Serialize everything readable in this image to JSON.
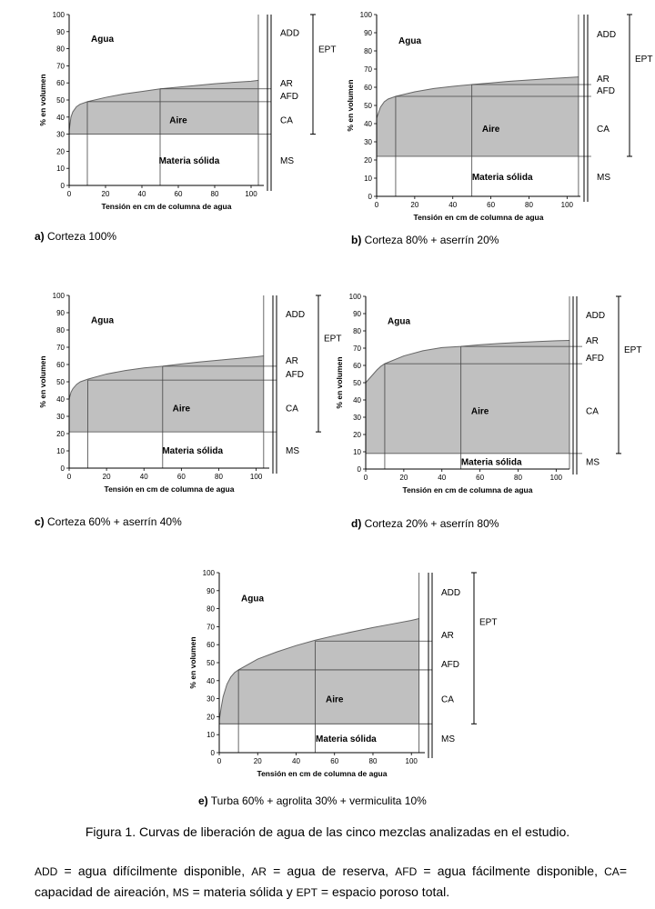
{
  "colors": {
    "fill": "#c0c0c0",
    "plot_bg": "#ffffff",
    "line": "#000000"
  },
  "common": {
    "xlabel": "Tensión en cm de columna de agua",
    "ylabel": "% en volumen",
    "y_ticks": [
      "0",
      "10",
      "20",
      "30",
      "40",
      "50",
      "60",
      "70",
      "80",
      "90",
      "100"
    ],
    "x_ticks": [
      "0",
      "20",
      "40",
      "60",
      "80",
      "100"
    ],
    "zone_water": "Agua",
    "zone_air": "Aire",
    "zone_solid": "Materia sólida",
    "label_add": "ADD",
    "label_ar": "AR",
    "label_afd": "AFD",
    "label_ca": "CA",
    "label_ms": "MS",
    "label_ept": "EPT"
  },
  "chart_data": [
    {
      "type": "area",
      "caption_letter": "a)",
      "caption_text": "Corteza 100%",
      "xlim": [
        0,
        107
      ],
      "ylim": [
        0,
        100
      ],
      "x": [
        0,
        1,
        2,
        4,
        6,
        10,
        20,
        30,
        40,
        50,
        60,
        70,
        80,
        90,
        100,
        104
      ],
      "y": [
        32,
        40,
        43,
        46,
        47.5,
        49,
        51.5,
        53.5,
        55,
        56.5,
        57.5,
        58.5,
        59.5,
        60.3,
        61,
        61.5
      ],
      "solid_level": 30,
      "afd_level": 49,
      "ar_level": 56.5,
      "ept_range": [
        30,
        100
      ]
    },
    {
      "type": "area",
      "caption_letter": "b)",
      "caption_text": "Corteza 80% + aserrín 20%",
      "xlim": [
        0,
        107
      ],
      "ylim": [
        0,
        100
      ],
      "x": [
        0,
        1,
        2,
        4,
        6,
        10,
        20,
        30,
        40,
        50,
        60,
        70,
        80,
        90,
        100,
        106
      ],
      "y": [
        43,
        46,
        49,
        52,
        53.5,
        55,
        57.5,
        59.3,
        60.5,
        61.5,
        62.4,
        63.3,
        64,
        64.7,
        65.3,
        65.7
      ],
      "solid_level": 22,
      "afd_level": 55,
      "ar_level": 61.5,
      "ept_range": [
        22,
        100
      ]
    },
    {
      "type": "area",
      "caption_letter": "c)",
      "caption_text": "Corteza 60% + aserrín 40%",
      "xlim": [
        0,
        107
      ],
      "ylim": [
        0,
        100
      ],
      "x": [
        0,
        1,
        2,
        4,
        6,
        10,
        20,
        30,
        40,
        50,
        60,
        70,
        80,
        90,
        100,
        104
      ],
      "y": [
        40,
        44,
        46,
        48.5,
        50,
        51.5,
        54.5,
        56.5,
        58,
        59,
        60.3,
        61.5,
        62.5,
        63.5,
        64.5,
        65
      ],
      "solid_level": 21,
      "afd_level": 51,
      "ar_level": 59,
      "ept_range": [
        21,
        100
      ]
    },
    {
      "type": "area",
      "caption_letter": "d)",
      "caption_text": "Corteza 20% + aserrín 80%",
      "xlim": [
        0,
        107
      ],
      "ylim": [
        0,
        100
      ],
      "x": [
        0,
        2,
        4,
        6,
        8,
        10,
        20,
        30,
        40,
        50,
        60,
        70,
        80,
        90,
        100,
        107
      ],
      "y": [
        50,
        52.5,
        55,
        57.5,
        59.5,
        61,
        65.5,
        68.5,
        70.3,
        71,
        72,
        72.7,
        73.3,
        73.8,
        74.3,
        74.5
      ],
      "solid_level": 9,
      "afd_level": 61,
      "ar_level": 71,
      "ept_range": [
        9,
        100
      ]
    },
    {
      "type": "area",
      "caption_letter": "e)",
      "caption_text": "Turba 60% + agrolita 30% + vermiculita 10%",
      "xlim": [
        0,
        107
      ],
      "ylim": [
        0,
        100
      ],
      "x": [
        0,
        1,
        2,
        4,
        6,
        8,
        10,
        20,
        30,
        40,
        50,
        60,
        70,
        80,
        90,
        100,
        104
      ],
      "y": [
        18,
        25,
        31,
        38,
        42,
        44.5,
        46,
        52,
        56,
        59.5,
        62.5,
        65,
        67.3,
        69.5,
        71.5,
        73.5,
        74.5
      ],
      "solid_level": 16,
      "afd_level": 46,
      "ar_level": 62,
      "ept_range": [
        16,
        100
      ]
    }
  ],
  "figure_title": "Figura 1. Curvas de liberación de agua de las cinco mezclas analizadas en el estudio.",
  "legend": {
    "add_abbr": "ADD",
    "add_text": " = agua difícilmente disponible, ",
    "ar_abbr": "AR",
    "ar_text": " = agua de reserva, ",
    "afd_abbr": "AFD",
    "afd_text": " = agua fácilmente disponible, ",
    "ca_abbr": "CA",
    "ca_text": "= capacidad de aireación, ",
    "ms_abbr": "MS",
    "ms_text": " = materia sólida y ",
    "ept_abbr": "EPT",
    "ept_text": " = espacio poroso total."
  }
}
